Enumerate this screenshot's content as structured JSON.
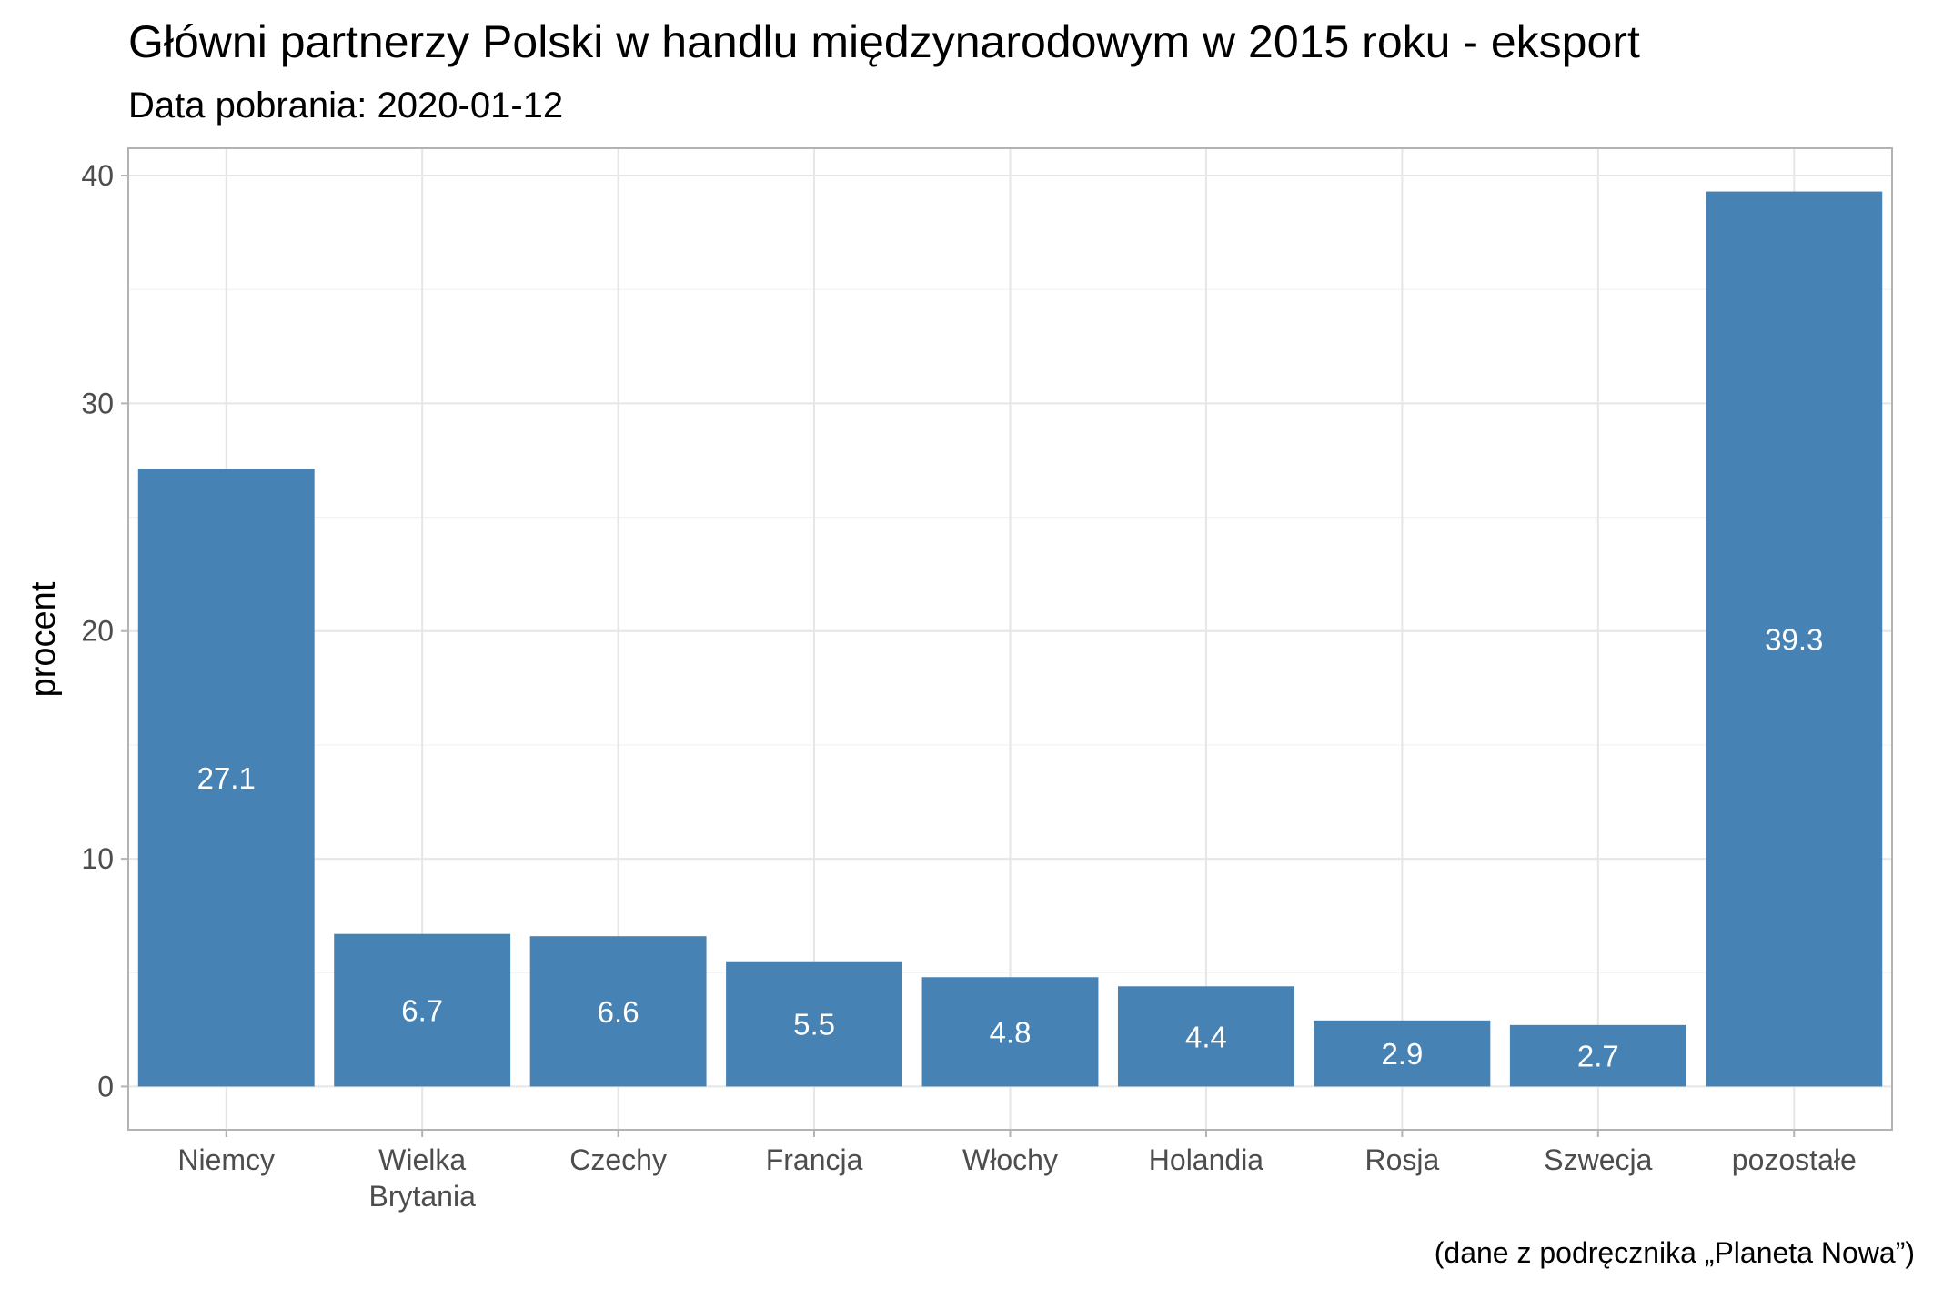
{
  "chart_data": {
    "type": "bar",
    "title": "Główni partnerzy Polski w handlu międzynarodowym w 2015 roku - eksport",
    "subtitle": "Data pobrania: 2020-01-12",
    "caption": "(dane z podręcznika „Planeta Nowa”)",
    "xlabel": "",
    "ylabel": "procent",
    "categories": [
      [
        "Niemcy"
      ],
      [
        "Wielka",
        "Brytania"
      ],
      [
        "Czechy"
      ],
      [
        "Francja"
      ],
      [
        "Włochy"
      ],
      [
        "Holandia"
      ],
      [
        "Rosja"
      ],
      [
        "Szwecja"
      ],
      [
        "pozostałe"
      ]
    ],
    "values": [
      27.1,
      6.7,
      6.6,
      5.5,
      4.8,
      4.4,
      2.9,
      2.7,
      39.3
    ],
    "value_labels": [
      "27.1",
      "6.7",
      "6.6",
      "5.5",
      "4.8",
      "4.4",
      "2.9",
      "2.7",
      "39.3"
    ],
    "ylim": [
      -1.9,
      41.2
    ],
    "yticks": [
      0,
      10,
      20,
      30,
      40
    ],
    "grid": true,
    "legend": "none",
    "colors": {
      "bar": "#4682b4",
      "grid": "#e6e6e6",
      "panel_border": "#b3b3b3",
      "tick_text": "#4d4d4d"
    }
  }
}
